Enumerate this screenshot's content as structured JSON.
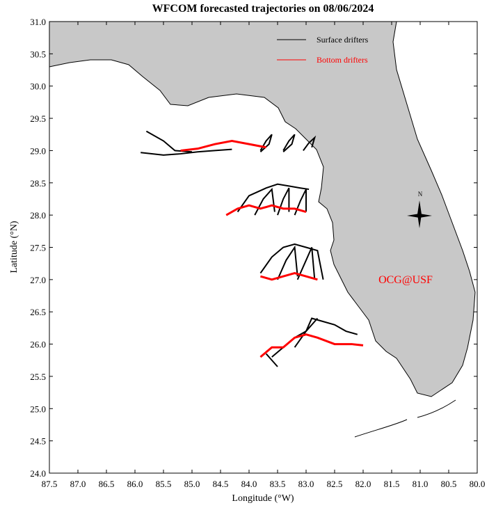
{
  "chart_data": {
    "type": "trajectory-map",
    "title": "WFCOM forecasted trajectories on 08/06/2024",
    "x_label": "Longitude (°W)",
    "y_label": "Latitude (°N)",
    "annotation": "OCG@USF",
    "compass_label": "N",
    "xlim": [
      87.5,
      80.0
    ],
    "ylim": [
      24.0,
      31.0
    ],
    "xticks": [
      87.5,
      {
        "value": 87,
        "label": "87.0"
      },
      86.5,
      {
        "value": 86,
        "label": "86.0"
      },
      85.5,
      {
        "value": 85,
        "label": "85.0"
      },
      84.5,
      {
        "value": 84,
        "label": "84.0"
      },
      83.5,
      {
        "value": 83,
        "label": "83.0"
      },
      82.5,
      {
        "value": 82,
        "label": "82.0"
      },
      81.5,
      {
        "value": 81,
        "label": "81.0"
      },
      80.5,
      {
        "value": 80,
        "label": "80.0"
      }
    ],
    "yticks": [
      {
        "value": 24,
        "label": "24.0"
      },
      24.5,
      {
        "value": 25,
        "label": "25.0"
      },
      25.5,
      {
        "value": 26,
        "label": "26.0"
      },
      26.5,
      {
        "value": 27,
        "label": "27.0"
      },
      27.5,
      {
        "value": 28,
        "label": "28.0"
      },
      28.5,
      {
        "value": 29,
        "label": "29.0"
      },
      29.5,
      {
        "value": 30,
        "label": "30.0"
      },
      30.5,
      {
        "value": 31,
        "label": "31.0"
      }
    ],
    "series": [
      {
        "name": "Surface drifters",
        "color": "#000000",
        "tracks": [
          {
            "x": [
              85.9,
              85.5,
              85.2,
              84.9,
              84.6,
              84.3
            ],
            "y": [
              28.97,
              28.93,
              28.95,
              28.98,
              29.0,
              29.02
            ]
          },
          {
            "x": [
              85.8,
              85.5,
              85.3,
              85.0
            ],
            "y": [
              29.3,
              29.15,
              29.0,
              28.98
            ]
          },
          {
            "x": [
              83.8,
              83.7,
              83.6,
              83.65,
              83.8
            ],
            "y": [
              29.0,
              29.15,
              29.25,
              29.1,
              28.98
            ]
          },
          {
            "x": [
              83.4,
              83.3,
              83.2,
              83.25,
              83.4
            ],
            "y": [
              29.0,
              29.15,
              29.25,
              29.1,
              28.98
            ]
          },
          {
            "x": [
              83.05,
              82.95,
              82.85,
              82.9
            ],
            "y": [
              29.0,
              29.12,
              29.2,
              29.05
            ]
          },
          {
            "x": [
              84.2,
              84.0,
              83.7,
              83.5,
              83.3,
              83.1,
              82.95
            ],
            "y": [
              28.05,
              28.3,
              28.42,
              28.48,
              28.45,
              28.42,
              28.4
            ]
          },
          {
            "x": [
              83.9,
              83.75,
              83.6,
              83.55
            ],
            "y": [
              28.0,
              28.25,
              28.4,
              28.05
            ]
          },
          {
            "x": [
              83.5,
              83.4,
              83.3,
              83.3
            ],
            "y": [
              28.0,
              28.25,
              28.42,
              28.05
            ]
          },
          {
            "x": [
              83.2,
              83.1,
              83.0,
              83.0
            ],
            "y": [
              28.0,
              28.22,
              28.4,
              28.05
            ]
          },
          {
            "x": [
              83.8,
              83.6,
              83.4,
              83.2,
              83.0,
              82.8,
              82.7
            ],
            "y": [
              27.1,
              27.35,
              27.5,
              27.55,
              27.5,
              27.45,
              27.0
            ]
          },
          {
            "x": [
              83.5,
              83.35,
              83.2,
              83.15
            ],
            "y": [
              27.0,
              27.3,
              27.5,
              27.05
            ]
          },
          {
            "x": [
              83.15,
              83.0,
              82.9,
              82.85
            ],
            "y": [
              27.0,
              27.3,
              27.5,
              27.0
            ]
          },
          {
            "x": [
              83.2,
              83.0,
              82.9,
              82.7,
              82.5,
              82.3,
              82.1
            ],
            "y": [
              25.95,
              26.2,
              26.4,
              26.35,
              26.3,
              26.2,
              26.15
            ]
          },
          {
            "x": [
              83.6,
              83.4,
              83.2,
              83.0,
              82.8
            ],
            "y": [
              25.8,
              25.95,
              26.1,
              26.2,
              26.4
            ]
          },
          {
            "x": [
              83.7,
              83.6,
              83.5
            ],
            "y": [
              25.85,
              25.75,
              25.65
            ]
          }
        ]
      },
      {
        "name": "Bottom drifters",
        "color": "#ff0000",
        "tracks": [
          {
            "x": [
              85.2,
              84.9,
              84.6,
              84.3,
              84.0,
              83.7
            ],
            "y": [
              29.0,
              29.03,
              29.1,
              29.15,
              29.1,
              29.05
            ]
          },
          {
            "x": [
              84.4,
              84.2,
              84.0,
              83.8,
              83.6,
              83.4,
              83.2,
              83.0
            ],
            "y": [
              28.0,
              28.1,
              28.15,
              28.1,
              28.15,
              28.1,
              28.1,
              28.05
            ]
          },
          {
            "x": [
              83.8,
              83.6,
              83.4,
              83.2,
              83.0,
              82.8
            ],
            "y": [
              27.05,
              27.0,
              27.05,
              27.1,
              27.05,
              27.0
            ]
          },
          {
            "x": [
              83.8,
              83.6,
              83.4,
              83.2,
              83.0,
              82.8,
              82.5,
              82.2,
              82.0
            ],
            "y": [
              25.8,
              25.95,
              25.95,
              26.1,
              26.15,
              26.1,
              26.0,
              26.0,
              25.98
            ]
          }
        ]
      }
    ]
  }
}
